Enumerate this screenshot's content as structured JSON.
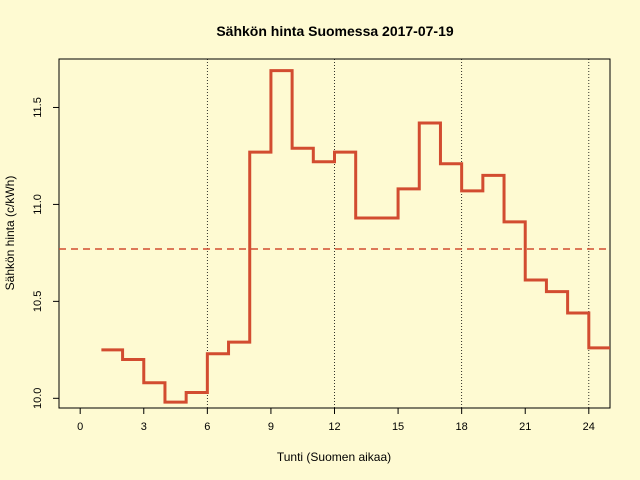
{
  "chart_data": {
    "type": "line",
    "step": true,
    "title": "Sähkön hinta Suomessa 2017-07-19",
    "xlabel": "Tunti (Suomen aikaa)",
    "ylabel": "Sähkön hinta (c/kWh)",
    "xlim": [
      -1,
      25
    ],
    "ylim": [
      9.95,
      11.75
    ],
    "x_ticks": [
      0,
      3,
      6,
      9,
      12,
      15,
      18,
      21,
      24
    ],
    "y_ticks": [
      10.0,
      10.5,
      11.0,
      11.5
    ],
    "y_tick_labels": [
      "10.0",
      "10.5",
      "11.0",
      "11.5"
    ],
    "vertical_gridlines_at": [
      6,
      12,
      18,
      24
    ],
    "mean_line": 10.77,
    "series_color": "#d24c30",
    "mean_color": "#d24c30",
    "x": [
      1,
      2,
      3,
      4,
      5,
      6,
      7,
      8,
      9,
      10,
      11,
      12,
      13,
      14,
      15,
      16,
      17,
      18,
      19,
      20,
      21,
      22,
      23,
      24
    ],
    "values": [
      10.25,
      10.2,
      10.08,
      9.98,
      10.03,
      10.23,
      10.29,
      11.27,
      11.69,
      11.29,
      11.22,
      11.27,
      10.93,
      10.93,
      11.08,
      11.42,
      11.21,
      11.07,
      11.15,
      10.91,
      10.61,
      10.55,
      10.44,
      10.26
    ]
  }
}
